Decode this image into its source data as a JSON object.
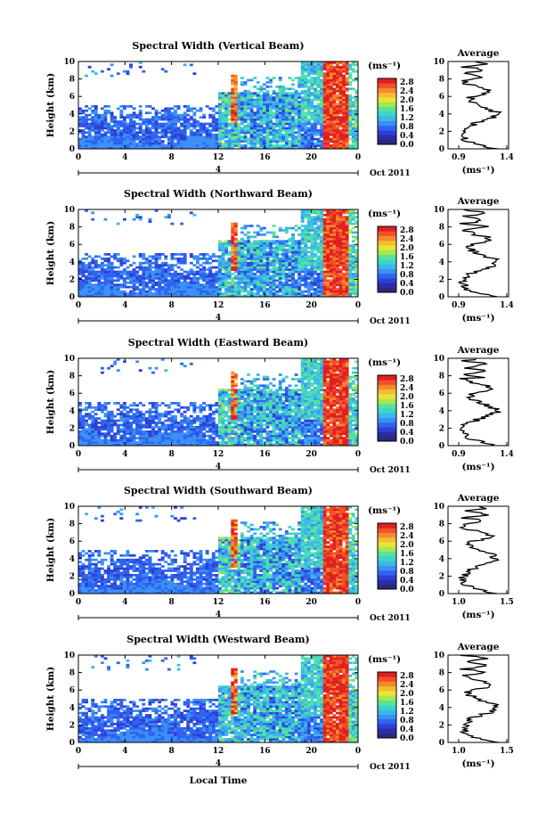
{
  "chart_data": {
    "type": "heatmap",
    "panels": [
      {
        "title": "Spectral Width (Vertical Beam)",
        "avg_ticks": [
          "0.9",
          "1.4"
        ]
      },
      {
        "title": "Spectral Width (Northward Beam)",
        "avg_ticks": [
          "0.9",
          "1.4"
        ]
      },
      {
        "title": "Spectral Width (Eastward Beam)",
        "avg_ticks": [
          "0.9",
          "1.4"
        ]
      },
      {
        "title": "Spectral Width (Southward Beam)",
        "avg_ticks": [
          "1.0",
          "1.5"
        ]
      },
      {
        "title": "Spectral Width (Westward Beam)",
        "avg_ticks": [
          "1.0",
          "1.5"
        ]
      }
    ],
    "ylabel": "Height (km)",
    "xlabel": "Local Time",
    "x_ticks": [
      "0",
      "4",
      "8",
      "12",
      "16",
      "20",
      "0"
    ],
    "y_ticks": [
      "0",
      "2",
      "4",
      "6",
      "8",
      "10"
    ],
    "xlim": [
      0,
      24
    ],
    "ylim": [
      0,
      10
    ],
    "date_marker": "4",
    "date_label": "Oct 2011",
    "colorbar": {
      "unit": "(ms⁻¹)",
      "ticks": [
        "2.8",
        "2.4",
        "2.0",
        "1.6",
        "1.2",
        "0.8",
        "0.4",
        "0.0"
      ],
      "colors": [
        "#2a2a7a",
        "#2c2ca5",
        "#2f3fd6",
        "#2f63f0",
        "#3a90f5",
        "#3cb8e8",
        "#3ed5c8",
        "#57e39a",
        "#a6e84f",
        "#e7e53a",
        "#f5bc2f",
        "#f58a2c",
        "#f0502a",
        "#e02020"
      ]
    },
    "average": {
      "title": "Average",
      "xlabel": "(ms⁻¹)",
      "y_ticks": [
        "0",
        "2",
        "4",
        "6",
        "8",
        "10"
      ]
    }
  }
}
